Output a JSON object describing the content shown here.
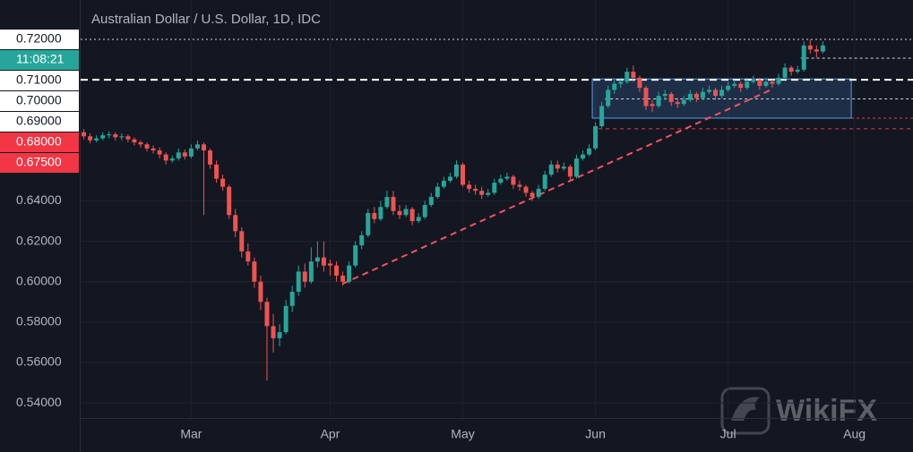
{
  "chart_data": {
    "type": "candlestick",
    "title": "Australian Dollar / U.S. Dollar, 1D, IDC",
    "watermark": "WikiFX",
    "countdown": "11:08:21",
    "up_color": "#26a69a",
    "down_color": "#ef5350",
    "ylim": [
      0.5325,
      0.7395
    ],
    "yticks": [
      {
        "value": 0.54,
        "label": "0.54000"
      },
      {
        "value": 0.56,
        "label": "0.56000"
      },
      {
        "value": 0.58,
        "label": "0.58000"
      },
      {
        "value": 0.6,
        "label": "0.60000"
      },
      {
        "value": 0.62,
        "label": "0.62000"
      },
      {
        "value": 0.64,
        "label": "0.64000"
      }
    ],
    "grid": true,
    "price_labels": [
      {
        "value": 0.72,
        "label": "0.72000",
        "color": "#ffffff"
      },
      {
        "value": 0.71,
        "label": "0.71000",
        "color": "#ffffff"
      },
      {
        "value": 0.7,
        "label": "0.70000",
        "color": "#ffffff"
      },
      {
        "value": 0.69,
        "label": "0.69000",
        "color": "#ffffff"
      },
      {
        "value": 0.68,
        "label": "0.68000",
        "color": "#f23645"
      },
      {
        "value": 0.675,
        "label": "0.67500",
        "color": "#f23645"
      }
    ],
    "levels": [
      {
        "value": 0.72,
        "from": 0,
        "color": "#d1d4dc",
        "dash": "2 3",
        "width": 1
      },
      {
        "value": 0.7,
        "from": 0,
        "color": "#ffffff",
        "dash": "8 5",
        "width": 2
      },
      {
        "value": 0.7107,
        "from": 114,
        "color": "#d1d4dc",
        "dash": "3 3",
        "width": 1
      },
      {
        "value": 0.6905,
        "from": 83,
        "color": "#d1d4dc",
        "dash": "3 3",
        "width": 1
      },
      {
        "value": 0.681,
        "from": 122,
        "color": "#f23645",
        "dash": "3 3",
        "width": 1
      },
      {
        "value": 0.6757,
        "from": 82,
        "color": "#f23645",
        "dash": "4 4",
        "width": 1
      }
    ],
    "box": {
      "from": 81,
      "to": 122,
      "top": 0.7004,
      "bottom": 0.681,
      "color": "#5b9cf6"
    },
    "trendline": {
      "x": [
        41,
        109
      ],
      "y": [
        0.599,
        0.6953
      ],
      "color": "#f7525f"
    },
    "categories": [
      null,
      null,
      null,
      null,
      null,
      null,
      null,
      null,
      null,
      null,
      null,
      null,
      null,
      null,
      null,
      null,
      null,
      "Mar",
      null,
      null,
      null,
      null,
      null,
      null,
      null,
      null,
      null,
      null,
      null,
      null,
      null,
      null,
      null,
      null,
      null,
      null,
      null,
      null,
      null,
      "Apr",
      null,
      null,
      null,
      null,
      null,
      null,
      null,
      null,
      null,
      null,
      null,
      null,
      null,
      null,
      null,
      null,
      null,
      null,
      null,
      null,
      "May",
      null,
      null,
      null,
      null,
      null,
      null,
      null,
      null,
      null,
      null,
      null,
      null,
      null,
      null,
      null,
      null,
      null,
      null,
      null,
      null,
      "Jun",
      null,
      null,
      null,
      null,
      null,
      null,
      null,
      null,
      null,
      null,
      null,
      null,
      null,
      null,
      null,
      null,
      null,
      null,
      null,
      null,
      "Jul",
      null,
      null,
      null,
      null,
      null,
      null,
      null,
      null,
      null,
      null,
      null,
      null,
      null,
      null,
      null,
      null,
      null,
      null,
      null,
      "Aug"
    ],
    "ohlc": [
      [
        0.674,
        0.6755,
        0.6705,
        0.672
      ],
      [
        0.672,
        0.6735,
        0.6685,
        0.67
      ],
      [
        0.67,
        0.6725,
        0.669,
        0.671
      ],
      [
        0.671,
        0.674,
        0.67,
        0.6725
      ],
      [
        0.6725,
        0.6745,
        0.671,
        0.673
      ],
      [
        0.673,
        0.674,
        0.67,
        0.6715
      ],
      [
        0.6715,
        0.6735,
        0.67,
        0.672
      ],
      [
        0.672,
        0.673,
        0.669,
        0.6705
      ],
      [
        0.6705,
        0.6715,
        0.6675,
        0.669
      ],
      [
        0.669,
        0.67,
        0.6665,
        0.668
      ],
      [
        0.668,
        0.669,
        0.6645,
        0.666
      ],
      [
        0.666,
        0.6675,
        0.6635,
        0.665
      ],
      [
        0.665,
        0.6665,
        0.661,
        0.663
      ],
      [
        0.663,
        0.664,
        0.658,
        0.66
      ],
      [
        0.66,
        0.6625,
        0.659,
        0.661
      ],
      [
        0.661,
        0.666,
        0.66,
        0.664
      ],
      [
        0.664,
        0.6655,
        0.6605,
        0.662
      ],
      [
        0.662,
        0.668,
        0.661,
        0.666
      ],
      [
        0.666,
        0.67,
        0.665,
        0.668
      ],
      [
        0.668,
        0.669,
        0.633,
        0.665
      ],
      [
        0.665,
        0.666,
        0.656,
        0.658
      ],
      [
        0.658,
        0.66,
        0.649,
        0.651
      ],
      [
        0.651,
        0.653,
        0.645,
        0.647
      ],
      [
        0.647,
        0.648,
        0.631,
        0.633
      ],
      [
        0.633,
        0.636,
        0.622,
        0.625
      ],
      [
        0.625,
        0.627,
        0.612,
        0.615
      ],
      [
        0.615,
        0.619,
        0.608,
        0.61
      ],
      [
        0.61,
        0.612,
        0.597,
        0.6
      ],
      [
        0.6,
        0.603,
        0.586,
        0.59
      ],
      [
        0.59,
        0.592,
        0.551,
        0.578
      ],
      [
        0.578,
        0.584,
        0.565,
        0.572
      ],
      [
        0.572,
        0.579,
        0.568,
        0.575
      ],
      [
        0.575,
        0.591,
        0.574,
        0.588
      ],
      [
        0.588,
        0.598,
        0.585,
        0.595
      ],
      [
        0.595,
        0.608,
        0.593,
        0.605
      ],
      [
        0.605,
        0.609,
        0.597,
        0.6
      ],
      [
        0.6,
        0.617,
        0.599,
        0.61
      ],
      [
        0.61,
        0.62,
        0.607,
        0.612
      ],
      [
        0.612,
        0.62,
        0.605,
        0.608
      ],
      [
        0.609,
        0.611,
        0.603,
        0.608
      ],
      [
        0.608,
        0.61,
        0.6,
        0.603
      ],
      [
        0.603,
        0.605,
        0.598,
        0.6
      ],
      [
        0.6,
        0.61,
        0.599,
        0.608
      ],
      [
        0.608,
        0.62,
        0.607,
        0.618
      ],
      [
        0.618,
        0.625,
        0.616,
        0.623
      ],
      [
        0.623,
        0.636,
        0.622,
        0.634
      ],
      [
        0.634,
        0.637,
        0.629,
        0.631
      ],
      [
        0.631,
        0.64,
        0.63,
        0.637
      ],
      [
        0.637,
        0.645,
        0.636,
        0.642
      ],
      [
        0.642,
        0.645,
        0.633,
        0.635
      ],
      [
        0.635,
        0.638,
        0.631,
        0.633
      ],
      [
        0.633,
        0.638,
        0.632,
        0.636
      ],
      [
        0.636,
        0.637,
        0.628,
        0.63
      ],
      [
        0.63,
        0.634,
        0.629,
        0.632
      ],
      [
        0.632,
        0.64,
        0.631,
        0.638
      ],
      [
        0.638,
        0.644,
        0.637,
        0.642
      ],
      [
        0.642,
        0.649,
        0.641,
        0.647
      ],
      [
        0.647,
        0.652,
        0.646,
        0.65
      ],
      [
        0.65,
        0.654,
        0.649,
        0.652
      ],
      [
        0.652,
        0.66,
        0.651,
        0.658
      ],
      [
        0.658,
        0.659,
        0.647,
        0.648
      ],
      [
        0.648,
        0.65,
        0.644,
        0.646
      ],
      [
        0.646,
        0.648,
        0.643,
        0.645
      ],
      [
        0.645,
        0.647,
        0.641,
        0.643
      ],
      [
        0.643,
        0.646,
        0.642,
        0.644
      ],
      [
        0.644,
        0.651,
        0.643,
        0.649
      ],
      [
        0.649,
        0.653,
        0.648,
        0.651
      ],
      [
        0.651,
        0.654,
        0.65,
        0.652
      ],
      [
        0.652,
        0.653,
        0.646,
        0.648
      ],
      [
        0.648,
        0.65,
        0.645,
        0.647
      ],
      [
        0.647,
        0.648,
        0.642,
        0.644
      ],
      [
        0.644,
        0.645,
        0.64,
        0.642
      ],
      [
        0.642,
        0.648,
        0.641,
        0.646
      ],
      [
        0.646,
        0.655,
        0.645,
        0.653
      ],
      [
        0.653,
        0.66,
        0.652,
        0.658
      ],
      [
        0.658,
        0.66,
        0.654,
        0.656
      ],
      [
        0.656,
        0.659,
        0.655,
        0.657
      ],
      [
        0.657,
        0.658,
        0.65,
        0.652
      ],
      [
        0.652,
        0.663,
        0.651,
        0.661
      ],
      [
        0.661,
        0.665,
        0.66,
        0.663
      ],
      [
        0.663,
        0.668,
        0.662,
        0.666
      ],
      [
        0.666,
        0.679,
        0.665,
        0.677
      ],
      [
        0.677,
        0.689,
        0.676,
        0.687
      ],
      [
        0.687,
        0.697,
        0.686,
        0.695
      ],
      [
        0.695,
        0.7,
        0.693,
        0.698
      ],
      [
        0.698,
        0.701,
        0.696,
        0.699
      ],
      [
        0.699,
        0.706,
        0.698,
        0.704
      ],
      [
        0.704,
        0.707,
        0.699,
        0.701
      ],
      [
        0.701,
        0.702,
        0.694,
        0.696
      ],
      [
        0.696,
        0.697,
        0.685,
        0.687
      ],
      [
        0.688,
        0.69,
        0.684,
        0.687
      ],
      [
        0.687,
        0.694,
        0.686,
        0.692
      ],
      [
        0.692,
        0.695,
        0.69,
        0.693
      ],
      [
        0.693,
        0.694,
        0.687,
        0.689
      ],
      [
        0.689,
        0.691,
        0.686,
        0.688
      ],
      [
        0.688,
        0.692,
        0.687,
        0.69
      ],
      [
        0.69,
        0.695,
        0.689,
        0.693
      ],
      [
        0.693,
        0.694,
        0.689,
        0.691
      ],
      [
        0.691,
        0.696,
        0.69,
        0.694
      ],
      [
        0.694,
        0.697,
        0.693,
        0.695
      ],
      [
        0.695,
        0.696,
        0.69,
        0.692
      ],
      [
        0.692,
        0.697,
        0.691,
        0.695
      ],
      [
        0.695,
        0.699,
        0.694,
        0.697
      ],
      [
        0.697,
        0.7,
        0.696,
        0.698
      ],
      [
        0.698,
        0.699,
        0.694,
        0.696
      ],
      [
        0.696,
        0.701,
        0.695,
        0.699
      ],
      [
        0.699,
        0.702,
        0.698,
        0.7
      ],
      [
        0.7,
        0.701,
        0.695,
        0.697
      ],
      [
        0.697,
        0.701,
        0.696,
        0.699
      ],
      [
        0.699,
        0.7,
        0.696,
        0.698
      ],
      [
        0.698,
        0.703,
        0.697,
        0.701
      ],
      [
        0.701,
        0.708,
        0.7,
        0.706
      ],
      [
        0.706,
        0.707,
        0.702,
        0.704
      ],
      [
        0.704,
        0.707,
        0.703,
        0.705
      ],
      [
        0.705,
        0.719,
        0.704,
        0.717
      ],
      [
        0.717,
        0.72,
        0.713,
        0.715
      ],
      [
        0.715,
        0.717,
        0.711,
        0.714
      ],
      [
        0.714,
        0.719,
        0.713,
        0.717
      ],
      null,
      null,
      null,
      null,
      null
    ]
  }
}
